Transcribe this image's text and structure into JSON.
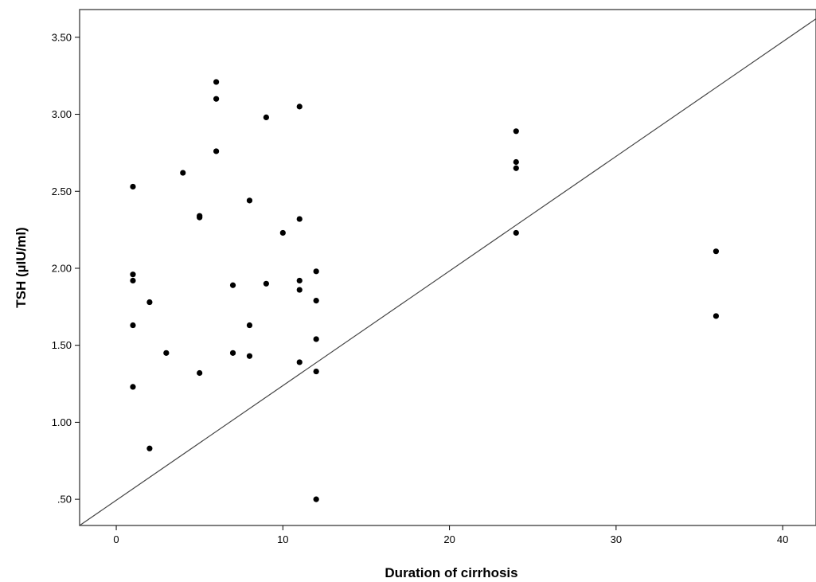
{
  "chart_data": {
    "type": "scatter",
    "title": "",
    "xlabel": "Duration of cirrhosis",
    "ylabel": "TSH (µIU/ml)",
    "xlim": [
      -2.2,
      42
    ],
    "ylim": [
      0.33,
      3.68
    ],
    "x_ticks": [
      0,
      10,
      20,
      30,
      40
    ],
    "x_tick_labels": [
      "0",
      "10",
      "20",
      "30",
      "40"
    ],
    "y_ticks": [
      0.5,
      1.0,
      1.5,
      2.0,
      2.5,
      3.0,
      3.5
    ],
    "y_tick_labels": [
      ".50",
      "1.00",
      "1.50",
      "2.00",
      "2.50",
      "3.00",
      "3.50"
    ],
    "grid": false,
    "reference_line": {
      "type": "diagonal",
      "x": [
        -2.2,
        42
      ],
      "y": [
        0.33,
        3.62
      ]
    },
    "colors": {
      "marker": "#000000",
      "line": "#444444",
      "frame": "#555555"
    },
    "points": [
      {
        "x": 1,
        "y": 2.53
      },
      {
        "x": 1,
        "y": 1.96
      },
      {
        "x": 1,
        "y": 1.92
      },
      {
        "x": 1,
        "y": 1.63
      },
      {
        "x": 1,
        "y": 1.23
      },
      {
        "x": 2,
        "y": 1.78
      },
      {
        "x": 2,
        "y": 0.83
      },
      {
        "x": 3,
        "y": 1.45
      },
      {
        "x": 4,
        "y": 2.62
      },
      {
        "x": 5,
        "y": 2.34
      },
      {
        "x": 5,
        "y": 2.33
      },
      {
        "x": 5,
        "y": 1.32
      },
      {
        "x": 6,
        "y": 3.21
      },
      {
        "x": 6,
        "y": 3.1
      },
      {
        "x": 6,
        "y": 2.76
      },
      {
        "x": 7,
        "y": 1.89
      },
      {
        "x": 7,
        "y": 1.45
      },
      {
        "x": 8,
        "y": 2.44
      },
      {
        "x": 8,
        "y": 1.63
      },
      {
        "x": 8,
        "y": 1.43
      },
      {
        "x": 9,
        "y": 2.98
      },
      {
        "x": 9,
        "y": 1.9
      },
      {
        "x": 10,
        "y": 2.23
      },
      {
        "x": 11,
        "y": 3.05
      },
      {
        "x": 11,
        "y": 2.32
      },
      {
        "x": 11,
        "y": 1.92
      },
      {
        "x": 11,
        "y": 1.86
      },
      {
        "x": 11,
        "y": 1.39
      },
      {
        "x": 12,
        "y": 1.98
      },
      {
        "x": 12,
        "y": 1.79
      },
      {
        "x": 12,
        "y": 1.54
      },
      {
        "x": 12,
        "y": 1.33
      },
      {
        "x": 12,
        "y": 0.5
      },
      {
        "x": 24,
        "y": 2.89
      },
      {
        "x": 24,
        "y": 2.69
      },
      {
        "x": 24,
        "y": 2.65
      },
      {
        "x": 24,
        "y": 2.23
      },
      {
        "x": 36,
        "y": 2.11
      },
      {
        "x": 36,
        "y": 1.69
      }
    ]
  }
}
